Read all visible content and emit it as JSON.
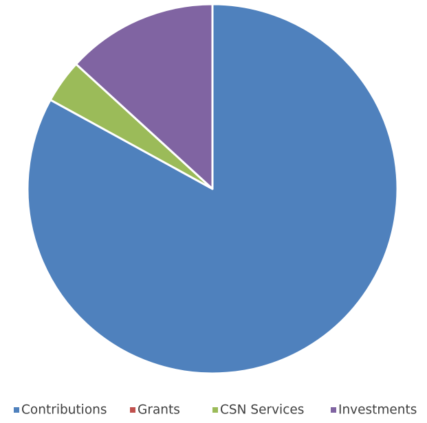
{
  "chart_data": {
    "type": "pie",
    "title": "",
    "series": [
      {
        "name": "Contributions",
        "value": 83,
        "color": "#4f81bd"
      },
      {
        "name": "Grants",
        "value": 0,
        "color": "#c0504d"
      },
      {
        "name": "CSN Services",
        "value": 3.8,
        "color": "#9bbb59"
      },
      {
        "name": "Investments",
        "value": 13.2,
        "color": "#8064a2"
      }
    ],
    "start_angle_deg": 0,
    "direction": "clockwise",
    "legend_position": "bottom"
  }
}
